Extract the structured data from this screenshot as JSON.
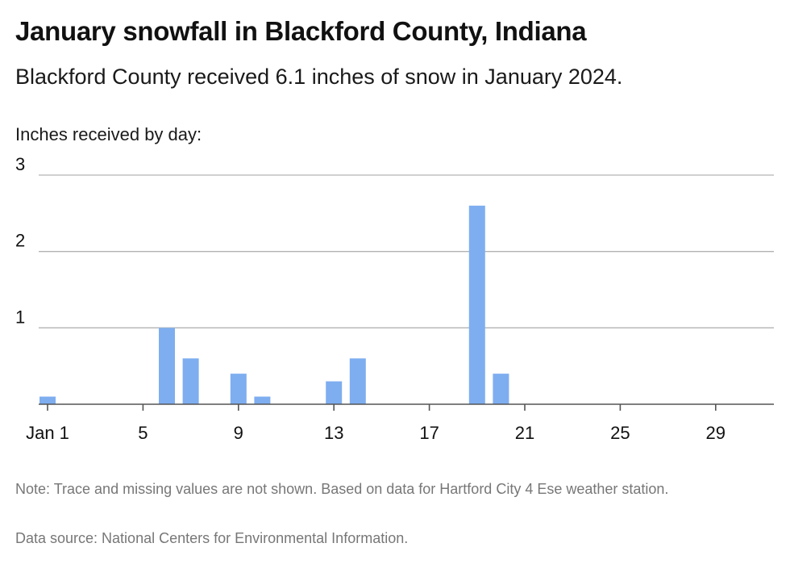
{
  "title": "January snowfall in Blackford County, Indiana",
  "subtitle": "Blackford County received 6.1 inches of snow in January 2024.",
  "notes": {
    "note": "Note: Trace and missing values are not shown. Based on data for Hartford City 4 Ese weather station.",
    "source": "Data source: National Centers for Environmental Information."
  },
  "chart_data": {
    "type": "bar",
    "ylabel": "Inches received by day:",
    "ylim": [
      0,
      3
    ],
    "yticks": [
      1,
      2,
      3
    ],
    "xlim": [
      1,
      31
    ],
    "xticks": [
      {
        "day": 1,
        "label": "Jan 1"
      },
      {
        "day": 5,
        "label": "5"
      },
      {
        "day": 9,
        "label": "9"
      },
      {
        "day": 13,
        "label": "13"
      },
      {
        "day": 17,
        "label": "17"
      },
      {
        "day": 21,
        "label": "21"
      },
      {
        "day": 25,
        "label": "25"
      },
      {
        "day": 29,
        "label": "29"
      }
    ],
    "grid": true,
    "bar_color": "#7eaef0",
    "data": [
      {
        "day": 1,
        "value": 0.1
      },
      {
        "day": 6,
        "value": 1.0
      },
      {
        "day": 7,
        "value": 0.6
      },
      {
        "day": 9,
        "value": 0.4
      },
      {
        "day": 10,
        "value": 0.1
      },
      {
        "day": 13,
        "value": 0.3
      },
      {
        "day": 14,
        "value": 0.6
      },
      {
        "day": 19,
        "value": 2.6
      },
      {
        "day": 20,
        "value": 0.4
      }
    ]
  }
}
